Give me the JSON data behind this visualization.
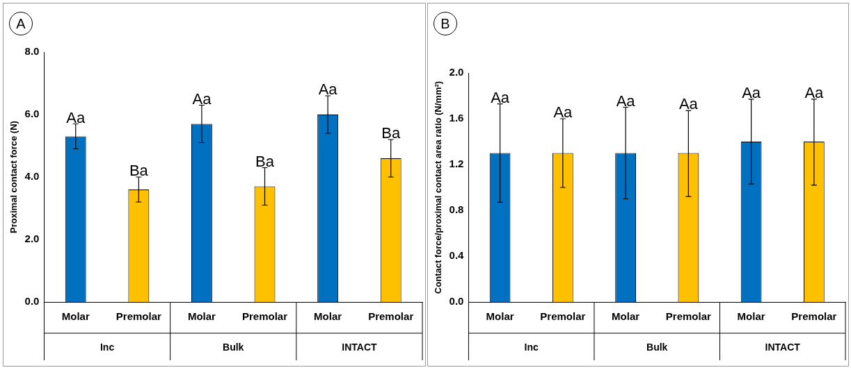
{
  "chart_data": [
    {
      "type": "bar",
      "title": "A",
      "ylabel": "Proximal contact force (N)",
      "categories": [
        "Inc",
        "Bulk",
        "INTACT"
      ],
      "series": [
        {
          "name": "Molar",
          "color": "#0070c0",
          "values": [
            5.3,
            5.7,
            6.0
          ],
          "errors": [
            [
              4.9,
              5.7
            ],
            [
              5.1,
              6.3
            ],
            [
              5.4,
              6.6
            ]
          ],
          "value_labels": [
            "Aa",
            "Aa",
            "Aa"
          ]
        },
        {
          "name": "Premolar",
          "color": "#ffc000",
          "values": [
            3.6,
            3.7,
            4.6
          ],
          "errors": [
            [
              3.2,
              4.0
            ],
            [
              3.1,
              4.3
            ],
            [
              4.0,
              5.2
            ]
          ],
          "value_labels": [
            "Ba",
            "Ba",
            "Ba"
          ]
        }
      ],
      "ylim": [
        0,
        8
      ],
      "yticks": [
        {
          "value": 0,
          "label": "0.0"
        },
        {
          "value": 2,
          "label": "2.0"
        },
        {
          "value": 4,
          "label": "4.0"
        },
        {
          "value": 6,
          "label": "6.0"
        },
        {
          "value": 8,
          "label": "8.0"
        }
      ],
      "grid": false,
      "legend": false
    },
    {
      "type": "bar",
      "title": "B",
      "ylabel": "Contact force/proximal contact area ratio (N/mm²)",
      "categories": [
        "Inc",
        "Bulk",
        "INTACT"
      ],
      "series": [
        {
          "name": "Molar",
          "color": "#0070c0",
          "values": [
            1.3,
            1.3,
            1.4
          ],
          "errors": [
            [
              0.87,
              1.73
            ],
            [
              0.9,
              1.7
            ],
            [
              1.03,
              1.77
            ]
          ],
          "value_labels": [
            "Aa",
            "Aa",
            "Aa"
          ]
        },
        {
          "name": "Premolar",
          "color": "#ffc000",
          "values": [
            1.3,
            1.3,
            1.4
          ],
          "errors": [
            [
              1.0,
              1.6
            ],
            [
              0.92,
              1.67
            ],
            [
              1.02,
              1.77
            ]
          ],
          "value_labels": [
            "Aa",
            "Aa",
            "Aa"
          ]
        }
      ],
      "ylim": [
        0,
        2
      ],
      "yticks": [
        {
          "value": 0,
          "label": "0.0"
        },
        {
          "value": 0.4,
          "label": "0.4"
        },
        {
          "value": 0.8,
          "label": "0.8"
        },
        {
          "value": 1.2,
          "label": "1.2"
        },
        {
          "value": 1.6,
          "label": "1.6"
        },
        {
          "value": 2,
          "label": "2.0"
        }
      ],
      "grid": false,
      "legend": false
    }
  ]
}
